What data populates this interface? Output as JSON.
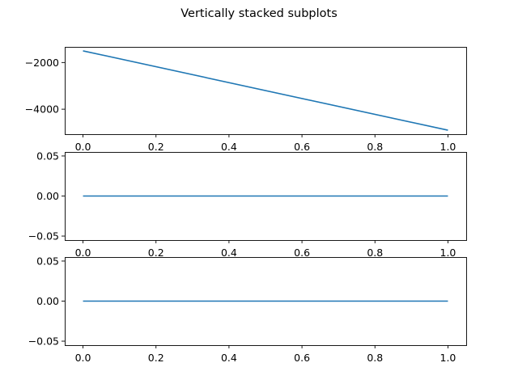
{
  "title": "Vertically stacked subplots",
  "colors": {
    "line": "#1f77b4",
    "axes": "#000000",
    "background": "#ffffff"
  },
  "chart_data": [
    {
      "type": "line",
      "x": [
        0.0,
        1.0
      ],
      "y": [
        -1500,
        -4900
      ],
      "xlim": [
        -0.05,
        1.05
      ],
      "ylim": [
        -5070,
        -1330
      ],
      "xticks": [
        0.0,
        0.2,
        0.4,
        0.6,
        0.8,
        1.0
      ],
      "xtick_labels": [
        "0.0",
        "0.2",
        "0.4",
        "0.6",
        "0.8",
        "1.0"
      ],
      "yticks": [
        -2000,
        -4000
      ],
      "ytick_labels": [
        "−2000",
        "−4000"
      ],
      "grid": false
    },
    {
      "type": "line",
      "x": [
        0.0,
        1.0
      ],
      "y": [
        0.0,
        0.0
      ],
      "xlim": [
        -0.05,
        1.05
      ],
      "ylim": [
        -0.055,
        0.055
      ],
      "xticks": [
        0.0,
        0.2,
        0.4,
        0.6,
        0.8,
        1.0
      ],
      "xtick_labels": [
        "0.0",
        "0.2",
        "0.4",
        "0.6",
        "0.8",
        "1.0"
      ],
      "yticks": [
        0.05,
        0.0,
        -0.05
      ],
      "ytick_labels": [
        "0.05",
        "0.00",
        "−0.05"
      ],
      "grid": false
    },
    {
      "type": "line",
      "x": [
        0.0,
        1.0
      ],
      "y": [
        0.0,
        0.0
      ],
      "xlim": [
        -0.05,
        1.05
      ],
      "ylim": [
        -0.055,
        0.055
      ],
      "xticks": [
        0.0,
        0.2,
        0.4,
        0.6,
        0.8,
        1.0
      ],
      "xtick_labels": [
        "0.0",
        "0.2",
        "0.4",
        "0.6",
        "0.8",
        "1.0"
      ],
      "yticks": [
        0.05,
        0.0,
        -0.05
      ],
      "ytick_labels": [
        "0.05",
        "0.00",
        "−0.05"
      ],
      "grid": false
    }
  ]
}
